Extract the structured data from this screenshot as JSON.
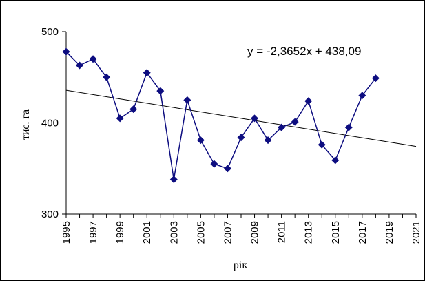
{
  "colors": {
    "series": "#0d0d80",
    "trend": "#000000",
    "axis": "#000000"
  },
  "chart_data": {
    "type": "line",
    "title": "",
    "xlabel": "рік",
    "ylabel": "тис. га",
    "xlim": [
      1995,
      2021
    ],
    "ylim": [
      300,
      500
    ],
    "y_ticks": [
      "300",
      "400",
      "500"
    ],
    "x_ticks": [
      "1995",
      "1997",
      "1999",
      "2001",
      "2003",
      "2005",
      "2007",
      "2009",
      "2011",
      "2013",
      "2015",
      "2017",
      "2019",
      "2021"
    ],
    "grid": false,
    "legend": "none",
    "series": [
      {
        "marker": "diamond",
        "x": [
          1995,
          1996,
          1997,
          1998,
          1999,
          2000,
          2001,
          2002,
          2003,
          2004,
          2005,
          2006,
          2007,
          2008,
          2009,
          2010,
          2011,
          2012,
          2013,
          2014,
          2015,
          2016,
          2017,
          2018
        ],
        "y": [
          478,
          463,
          470,
          450,
          405,
          415,
          455,
          435,
          338,
          425,
          381,
          355,
          350,
          384,
          405,
          381,
          395,
          401,
          424,
          376,
          359,
          395,
          430,
          449
        ]
      }
    ],
    "trendline": {
      "slope": -2.3652,
      "intercept": 438.09,
      "index_start": 1995,
      "x_start": 1995,
      "x_end": 2021,
      "equation_text": "y = -2,3652x + 438,09"
    }
  }
}
